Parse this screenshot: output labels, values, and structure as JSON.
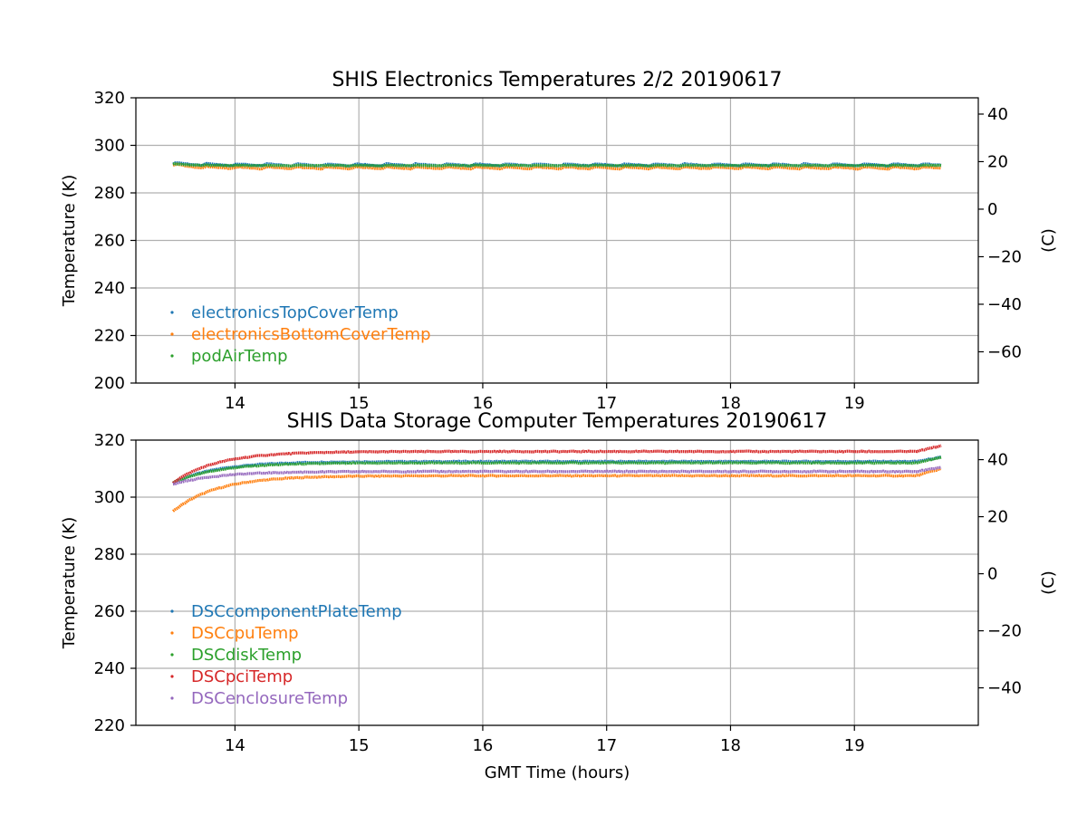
{
  "chart_data": [
    {
      "type": "scatter",
      "title": "SHIS Electronics Temperatures 2/2 20190617",
      "xlabel": "",
      "ylabel": "Temperature (K)",
      "ylabel_right": "(C)",
      "xlim": [
        13.2,
        20.0
      ],
      "ylim": [
        200,
        320
      ],
      "xticks": [
        14,
        15,
        16,
        17,
        18,
        19
      ],
      "yticks": [
        200,
        220,
        240,
        260,
        280,
        300,
        320
      ],
      "yticks_right": [
        40,
        20,
        0,
        -20,
        -40,
        -60
      ],
      "grid": true,
      "legend_position": "lower-left",
      "series": [
        {
          "name": "electronicsTopCoverTemp",
          "color": "#1f77b4",
          "base": 291.8,
          "amp": 0.9,
          "start": 292.5
        },
        {
          "name": "electronicsBottomCoverTemp",
          "color": "#ff7f0e",
          "base": 290.5,
          "amp": 0.9,
          "start": 292.0
        },
        {
          "name": "podAirTemp",
          "color": "#2ca02c",
          "base": 291.5,
          "amp": 0.2,
          "start": 292.2
        }
      ],
      "x_range": [
        13.5,
        19.7
      ]
    },
    {
      "type": "scatter",
      "title": "SHIS Data Storage Computer Temperatures 20190617",
      "xlabel": "GMT Time (hours)",
      "ylabel": "Temperature (K)",
      "ylabel_right": "(C)",
      "xlim": [
        13.2,
        20.0
      ],
      "ylim": [
        220,
        320
      ],
      "xticks": [
        14,
        15,
        16,
        17,
        18,
        19
      ],
      "yticks": [
        220,
        240,
        260,
        280,
        300,
        320
      ],
      "yticks_right": [
        40,
        20,
        0,
        -20,
        -40
      ],
      "grid": true,
      "legend_position": "lower-left",
      "series": [
        {
          "name": "DSCcomponentPlateTemp",
          "color": "#1f77b4",
          "start": 305.0,
          "plateau": 312.5,
          "end": 314.0
        },
        {
          "name": "DSCcpuTemp",
          "color": "#ff7f0e",
          "start": 295.0,
          "plateau": 307.5,
          "end": 310.0
        },
        {
          "name": "DSCdiskTemp",
          "color": "#2ca02c",
          "start": 305.0,
          "plateau": 312.0,
          "end": 314.0
        },
        {
          "name": "DSCpciTemp",
          "color": "#d62728",
          "start": 305.0,
          "plateau": 316.0,
          "end": 318.0
        },
        {
          "name": "DSCenclosureTemp",
          "color": "#9467bd",
          "start": 304.5,
          "plateau": 309.0,
          "end": 310.5
        }
      ],
      "x_range": [
        13.5,
        19.7
      ]
    }
  ]
}
